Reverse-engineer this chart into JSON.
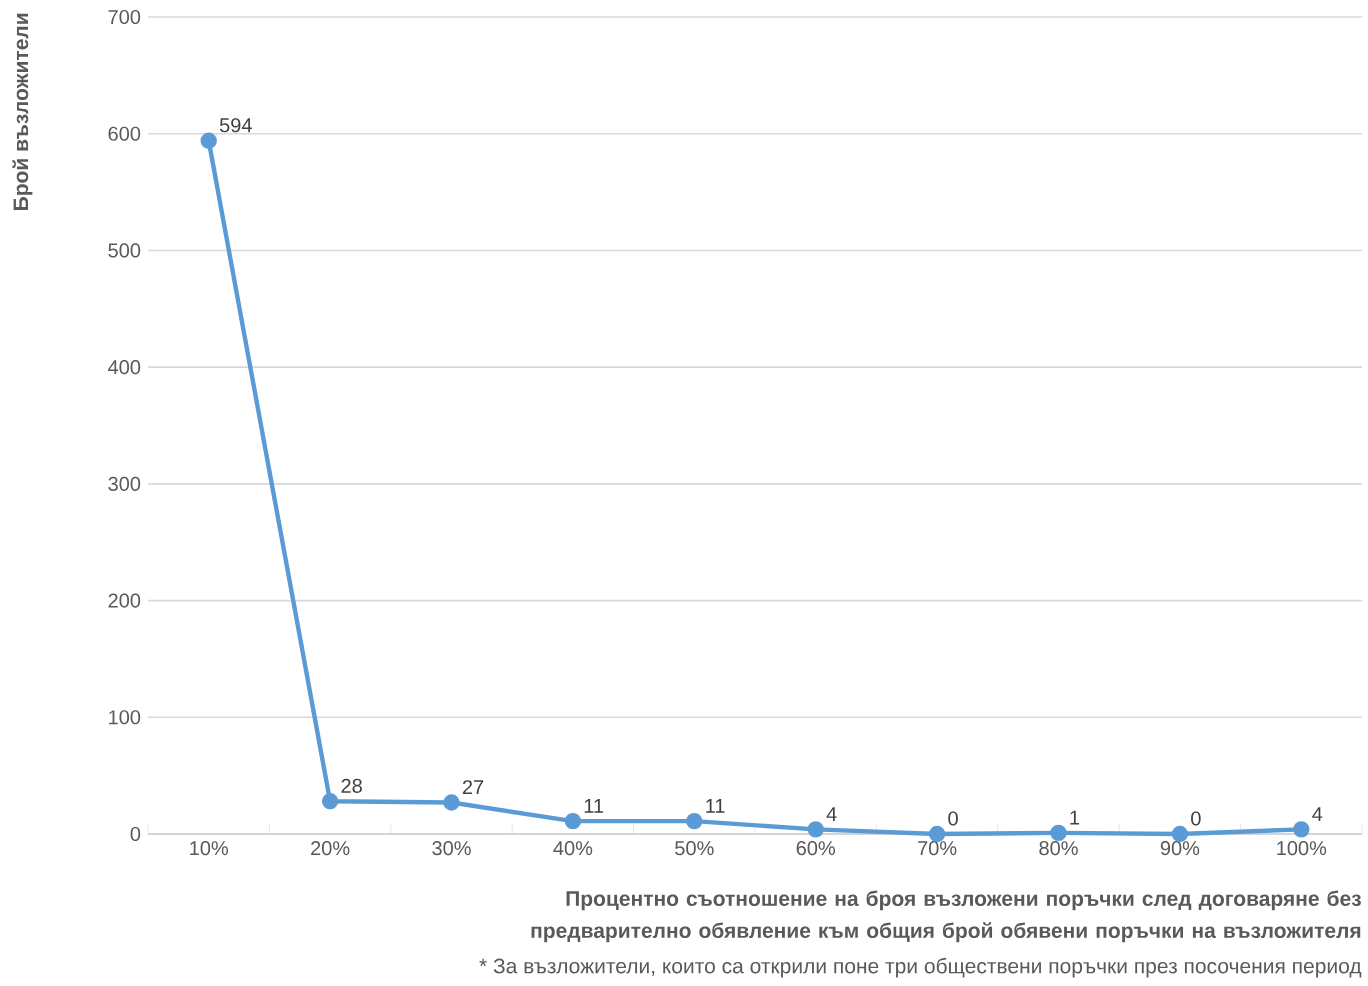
{
  "chart_data": {
    "type": "line",
    "xlabel": "Процентно съотношение на броя възложени поръчки след договаряне  без предварително обявление към общия брой обявени поръчки на възложителя",
    "ylabel": "Брой възложители",
    "annotations": [
      "* За възложители, които са открили поне три обществени поръчки през посочения период"
    ],
    "categories": [
      "10%",
      "20%",
      "30%",
      "40%",
      "50%",
      "60%",
      "70%",
      "80%",
      "90%",
      "100%"
    ],
    "values": [
      594,
      28,
      27,
      11,
      11,
      4,
      0,
      1,
      0,
      4
    ],
    "color": "#5b9bd5",
    "marker": "circle",
    "line_style": "solid",
    "data_labels": true,
    "grid": "y",
    "ylim": [
      0,
      700
    ],
    "yticks": [
      0,
      100,
      200,
      300,
      400,
      500,
      600,
      700
    ]
  }
}
